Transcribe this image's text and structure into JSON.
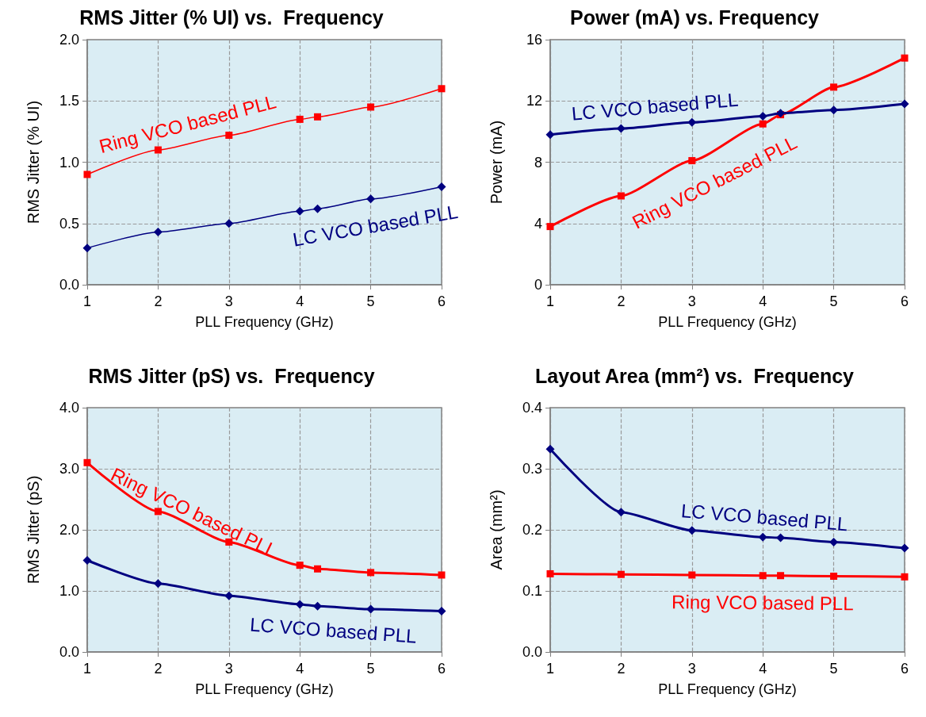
{
  "chart_data": [
    {
      "type": "line",
      "title": "RMS Jitter (% UI) vs.  Frequency",
      "xlabel": "PLL Frequency (GHz)",
      "ylabel": "RMS Jitter (% UI)",
      "x": [
        1,
        2,
        3,
        4,
        4.25,
        5,
        6
      ],
      "xlim": [
        1,
        6
      ],
      "xticks": [
        1,
        2,
        3,
        4,
        5,
        6
      ],
      "ylim": [
        0,
        2
      ],
      "yticks": [
        {
          "value": 0,
          "label": "0.0"
        },
        {
          "value": 0.5,
          "label": "0.5"
        },
        {
          "value": 1,
          "label": "1.0"
        },
        {
          "value": 1.5,
          "label": "1.5"
        },
        {
          "value": 2,
          "label": "2.0"
        }
      ],
      "grid": true,
      "legend": false,
      "series": [
        {
          "name": "Ring VCO based PLL",
          "color": "#ff0000",
          "marker": "square",
          "values": [
            0.9,
            1.1,
            1.22,
            1.35,
            1.37,
            1.45,
            1.6
          ]
        },
        {
          "name": "LC VCO based PLL",
          "color": "#000080",
          "marker": "diamond",
          "values": [
            0.3,
            0.43,
            0.5,
            0.6,
            0.62,
            0.7,
            0.8
          ]
        }
      ]
    },
    {
      "type": "line",
      "title": "Power (mA) vs. Frequency",
      "xlabel": "PLL Frequency (GHz)",
      "ylabel": "Power (mA)",
      "x": [
        1,
        2,
        3,
        4,
        4.25,
        5,
        6
      ],
      "xlim": [
        1,
        6
      ],
      "xticks": [
        1,
        2,
        3,
        4,
        5,
        6
      ],
      "ylim": [
        0,
        16
      ],
      "yticks": [
        0,
        4,
        8,
        12,
        16
      ],
      "grid": true,
      "legend": false,
      "series": [
        {
          "name": "LC VCO based PLL",
          "color": "#000080",
          "marker": "diamond",
          "values": [
            9.8,
            10.2,
            10.6,
            11.0,
            11.2,
            11.4,
            11.8
          ]
        },
        {
          "name": "Ring VCO based PLL",
          "color": "#ff0000",
          "marker": "square",
          "values": [
            3.8,
            5.8,
            8.1,
            10.5,
            11.1,
            12.9,
            14.8
          ]
        }
      ]
    },
    {
      "type": "line",
      "title": "RMS Jitter (pS) vs.  Frequency",
      "xlabel": "PLL Frequency (GHz)",
      "ylabel": "RMS Jitter (pS)",
      "x": [
        1,
        2,
        3,
        4,
        4.25,
        5,
        6
      ],
      "xlim": [
        1,
        6
      ],
      "xticks": [
        1,
        2,
        3,
        4,
        5,
        6
      ],
      "ylim": [
        0,
        4
      ],
      "yticks": [
        {
          "value": 0,
          "label": "0.0"
        },
        {
          "value": 1,
          "label": "1.0"
        },
        {
          "value": 2,
          "label": "2.0"
        },
        {
          "value": 3,
          "label": "3.0"
        },
        {
          "value": 4,
          "label": "4.0"
        }
      ],
      "grid": true,
      "legend": false,
      "series": [
        {
          "name": "Ring VCO based PLL",
          "color": "#ff0000",
          "marker": "square",
          "values": [
            3.1,
            2.3,
            1.8,
            1.42,
            1.36,
            1.3,
            1.26
          ]
        },
        {
          "name": "LC VCO based PLL",
          "color": "#000080",
          "marker": "diamond",
          "values": [
            1.5,
            1.12,
            0.92,
            0.78,
            0.75,
            0.7,
            0.67
          ]
        }
      ]
    },
    {
      "type": "line",
      "title": "Layout Area (mm²) vs.  Frequency",
      "xlabel": "PLL Frequency (GHz)",
      "ylabel": "Area (mm²)",
      "x": [
        1,
        2,
        3,
        4,
        4.25,
        5,
        6
      ],
      "xlim": [
        1,
        6
      ],
      "xticks": [
        1,
        2,
        3,
        4,
        5,
        6
      ],
      "ylim": [
        0,
        0.4
      ],
      "yticks": [
        {
          "value": 0,
          "label": "0.0"
        },
        {
          "value": 0.1,
          "label": "0.1"
        },
        {
          "value": 0.2,
          "label": "0.2"
        },
        {
          "value": 0.3,
          "label": "0.3"
        },
        {
          "value": 0.4,
          "label": "0.4"
        }
      ],
      "grid": true,
      "legend": false,
      "series": [
        {
          "name": "LC VCO based PLL",
          "color": "#000080",
          "marker": "diamond",
          "values": [
            0.332,
            0.229,
            0.199,
            0.188,
            0.187,
            0.18,
            0.17
          ]
        },
        {
          "name": "Ring VCO based PLL",
          "color": "#ff0000",
          "marker": "square",
          "values": [
            0.128,
            0.127,
            0.126,
            0.125,
            0.125,
            0.124,
            0.123
          ]
        }
      ]
    }
  ]
}
